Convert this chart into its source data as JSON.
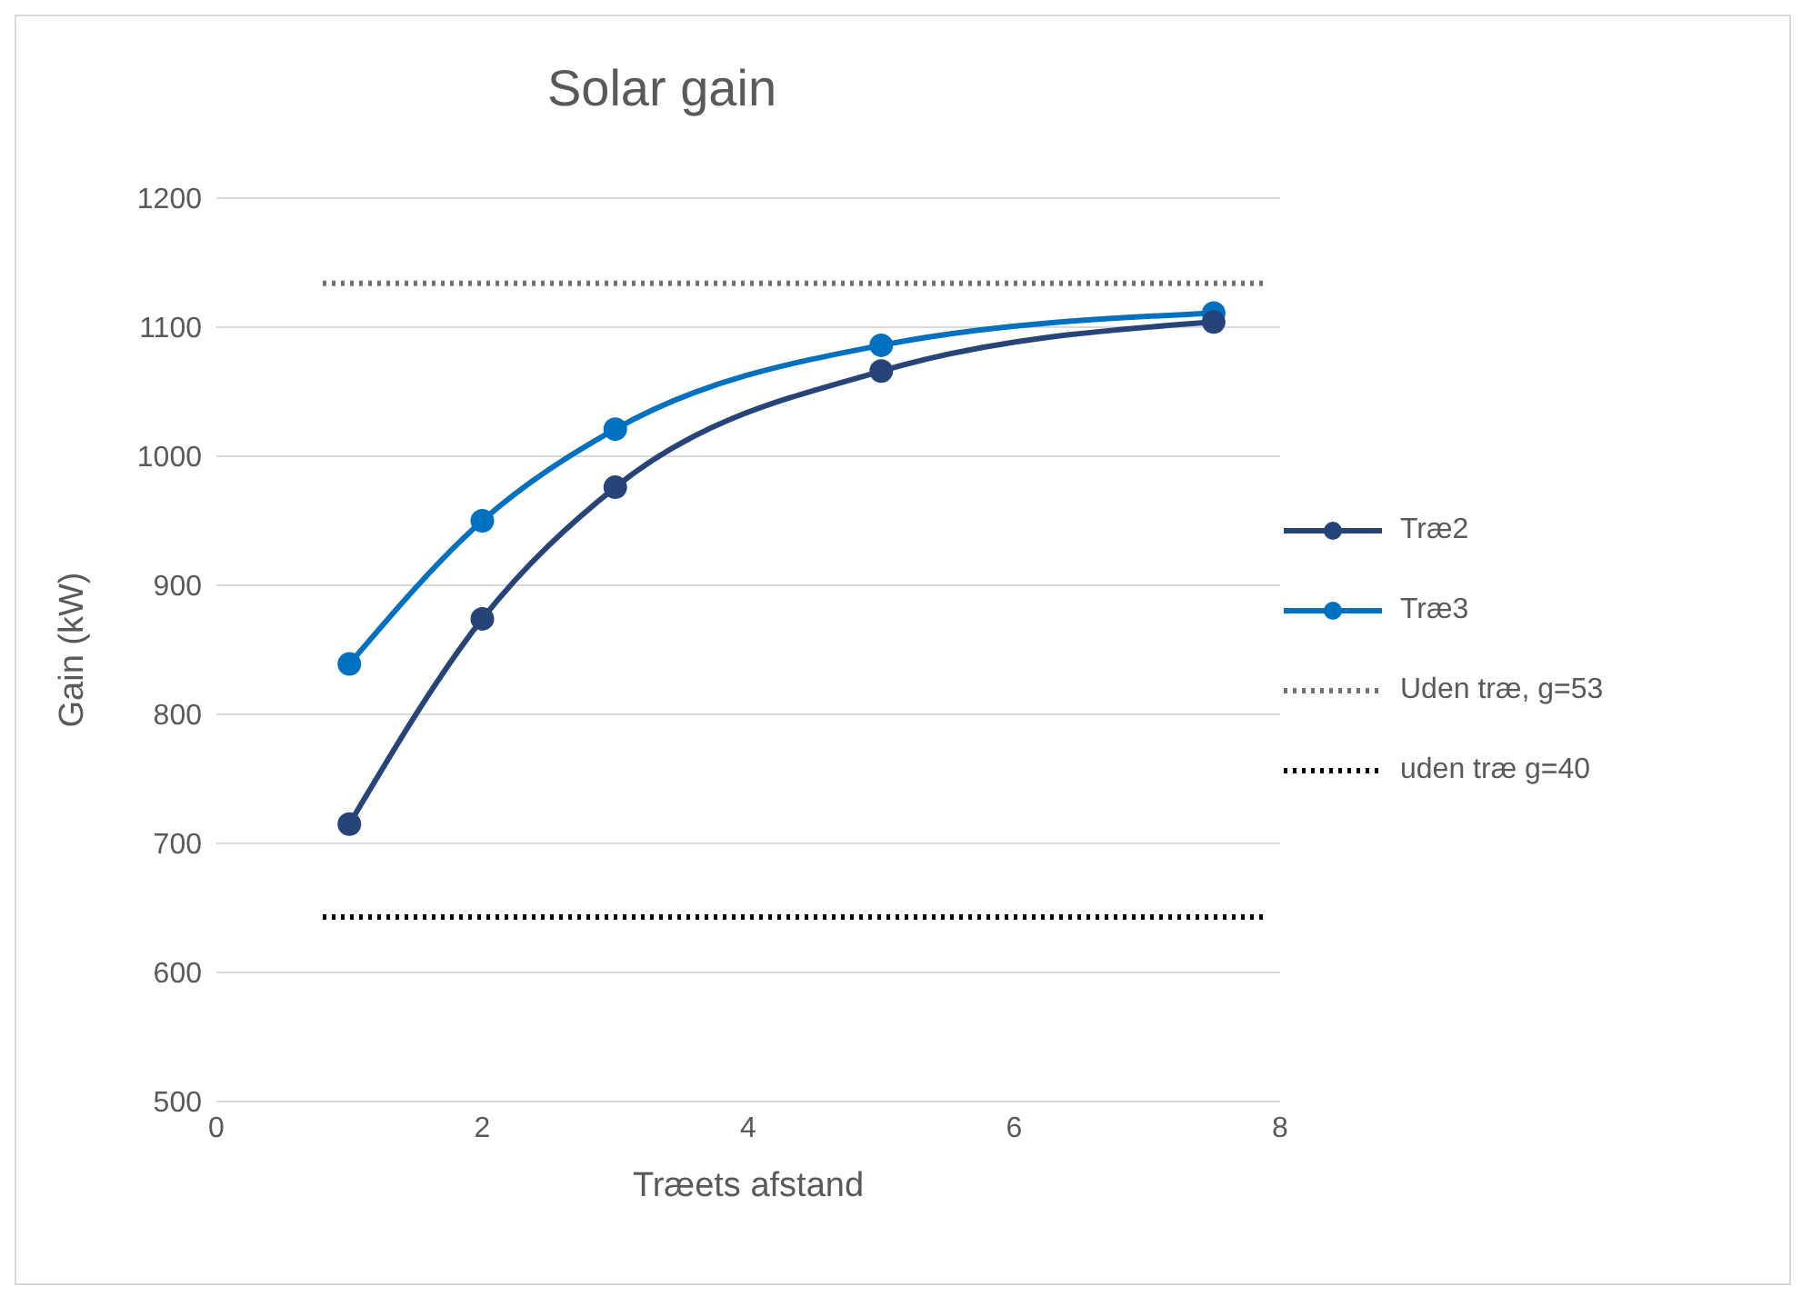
{
  "chart_data": {
    "type": "line",
    "title": "Solar gain",
    "xlabel": "Træets afstand",
    "ylabel": "Gain (kW)",
    "xlim": [
      0,
      8
    ],
    "xticks": [
      0,
      2,
      4,
      6,
      8
    ],
    "ylim": [
      500,
      1200
    ],
    "yticks": [
      500,
      600,
      700,
      800,
      900,
      1000,
      1100,
      1200
    ],
    "grid": "y",
    "legend": "right",
    "series": [
      {
        "name": "Træ2",
        "color": "#264478",
        "x": [
          1,
          2,
          3,
          5,
          7.5
        ],
        "values": [
          715,
          874,
          976,
          1066,
          1104
        ],
        "marker": "circle",
        "line_style": "solid"
      },
      {
        "name": "Træ3",
        "color": "#0070c0",
        "x": [
          1,
          2,
          3,
          5,
          7.5
        ],
        "values": [
          839,
          950,
          1021,
          1086,
          1111
        ],
        "marker": "circle",
        "line_style": "solid"
      },
      {
        "name": "Uden træ, g=53",
        "color": "#767171",
        "x": [
          0.8,
          7.9
        ],
        "values": [
          1134,
          1134
        ],
        "marker": "none",
        "line_style": "dotted"
      },
      {
        "name": "uden træ g=40",
        "color": "#000000",
        "x": [
          0.8,
          7.9
        ],
        "values": [
          643,
          643
        ],
        "marker": "none",
        "line_style": "dotted"
      }
    ]
  }
}
